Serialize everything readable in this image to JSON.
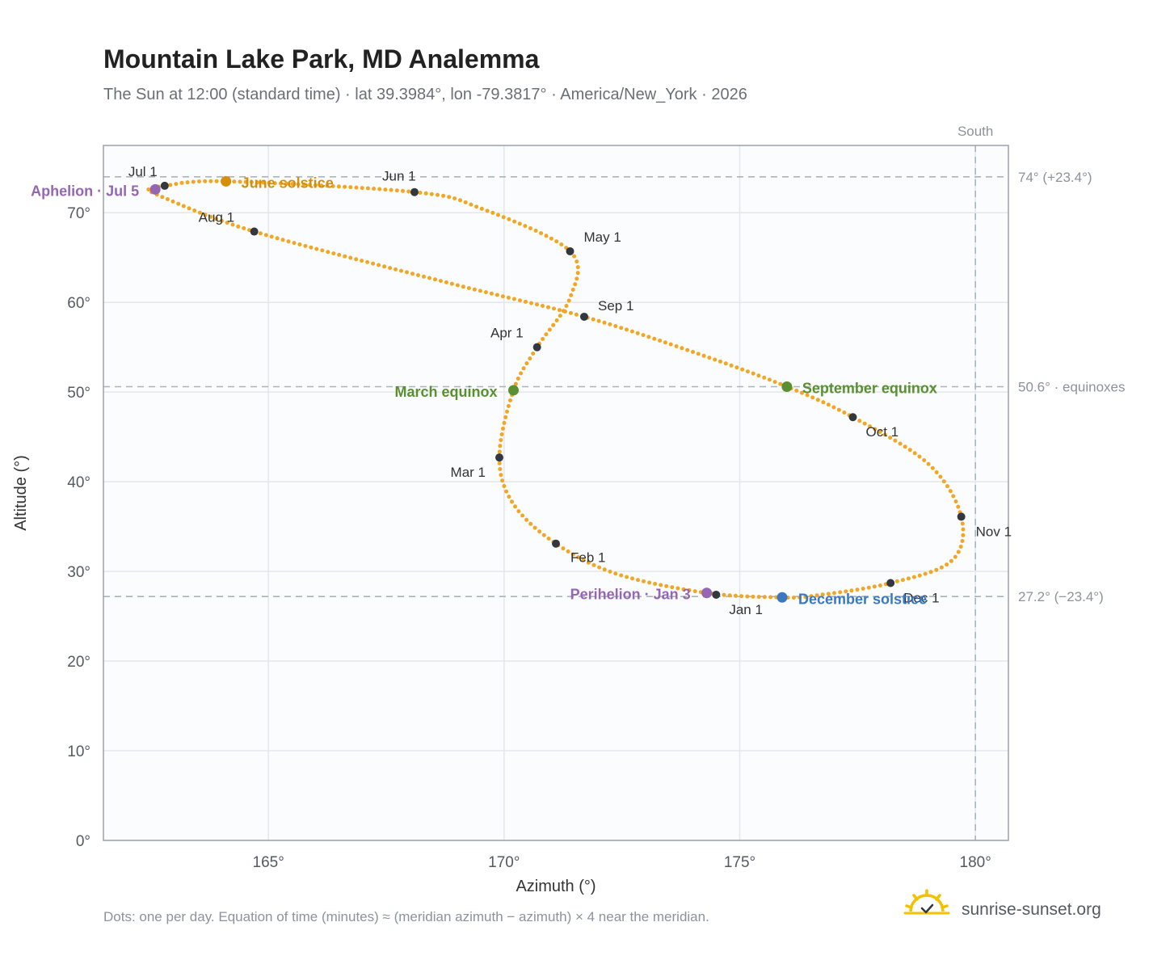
{
  "title": "Mountain Lake Park, MD Analemma",
  "subtitle": "The Sun at 12:00 (standard time) · lat 39.3984°, lon -79.3817° · America/New_York · 2026",
  "footnote": "Dots: one per day. Equation of time (minutes) ≈ (meridian azimuth − azimuth) × 4 near the meridian.",
  "brand": "sunrise-sunset.org",
  "colors": {
    "path": "#f2a623",
    "month_dot": "#333840",
    "solstice_june": "#d4900a",
    "equinox": "#5a9030",
    "solstice_december": "#3a78c0",
    "apsis": "#9466b4",
    "plot_bg": "#fafcfe",
    "grid": "#e3e7eb",
    "frame": "#98a2ae",
    "reference_line": "#aab4bd",
    "logo": "#f2c200"
  },
  "chart_data": {
    "type": "scatter",
    "xlabel": "Azimuth (°)",
    "ylabel": "Altitude (°)",
    "xlim": [
      161.5,
      180.7
    ],
    "ylim": [
      0,
      77.5
    ],
    "x_ticks": [
      {
        "value": 165,
        "label": "165°"
      },
      {
        "value": 170,
        "label": "170°"
      },
      {
        "value": 175,
        "label": "175°"
      },
      {
        "value": 180,
        "label": "180°"
      }
    ],
    "y_ticks": [
      {
        "value": 0,
        "label": "0°"
      },
      {
        "value": 10,
        "label": "10°"
      },
      {
        "value": 20,
        "label": "20°"
      },
      {
        "value": 30,
        "label": "30°"
      },
      {
        "value": 40,
        "label": "40°"
      },
      {
        "value": 50,
        "label": "50°"
      },
      {
        "value": 60,
        "label": "60°"
      },
      {
        "value": 70,
        "label": "70°"
      }
    ],
    "grid": true,
    "reference_lines": [
      {
        "axis": "y",
        "value": 74.0,
        "label": "74° (+23.4°)"
      },
      {
        "axis": "y",
        "value": 50.6,
        "label": "50.6° · equinoxes"
      },
      {
        "axis": "y",
        "value": 27.2,
        "label": "27.2° (−23.4°)"
      },
      {
        "axis": "x",
        "value": 180,
        "label": "South"
      }
    ],
    "month_points": [
      {
        "label": "Jan 1",
        "az": 174.5,
        "alt": 27.4
      },
      {
        "label": "Feb 1",
        "az": 171.1,
        "alt": 33.1
      },
      {
        "label": "Mar 1",
        "az": 169.9,
        "alt": 42.7
      },
      {
        "label": "Apr 1",
        "az": 170.7,
        "alt": 55.0
      },
      {
        "label": "May 1",
        "az": 171.4,
        "alt": 65.7
      },
      {
        "label": "Jun 1",
        "az": 168.1,
        "alt": 72.3
      },
      {
        "label": "Jul 1",
        "az": 162.8,
        "alt": 73.0
      },
      {
        "label": "Aug 1",
        "az": 164.7,
        "alt": 67.9
      },
      {
        "label": "Sep 1",
        "az": 171.7,
        "alt": 58.4
      },
      {
        "label": "Oct 1",
        "az": 177.4,
        "alt": 47.2
      },
      {
        "label": "Nov 1",
        "az": 179.7,
        "alt": 36.1
      },
      {
        "label": "Dec 1",
        "az": 178.2,
        "alt": 28.7
      }
    ],
    "events": [
      {
        "label": "June solstice",
        "az": 164.1,
        "alt": 73.5,
        "color": "#d4900a"
      },
      {
        "label": "March equinox",
        "az": 170.2,
        "alt": 50.2,
        "color": "#5a9030"
      },
      {
        "label": "September equinox",
        "az": 176.0,
        "alt": 50.6,
        "color": "#5a9030"
      },
      {
        "label": "December solstice",
        "az": 175.9,
        "alt": 27.1,
        "color": "#3a78c0"
      },
      {
        "label": "Aphelion · Jul 5",
        "az": 162.6,
        "alt": 72.6,
        "color": "#9466b4"
      },
      {
        "label": "Perihelion · Jan 3",
        "az": 174.3,
        "alt": 27.6,
        "color": "#9466b4"
      }
    ],
    "daily_path": [
      [
        175.9,
        27.1
      ],
      [
        174.3,
        27.6
      ],
      [
        172.4,
        29.7
      ],
      [
        171.1,
        33.1
      ],
      [
        170.2,
        37.5
      ],
      [
        169.9,
        42.7
      ],
      [
        170.2,
        50.2
      ],
      [
        170.7,
        55.0
      ],
      [
        171.4,
        60.5
      ],
      [
        171.4,
        65.7
      ],
      [
        169.5,
        70.5
      ],
      [
        168.1,
        72.3
      ],
      [
        164.1,
        73.5
      ],
      [
        162.8,
        73.0
      ],
      [
        162.6,
        72.6
      ],
      [
        162.6,
        72.1
      ],
      [
        164.7,
        67.9
      ],
      [
        168.8,
        62.2
      ],
      [
        171.7,
        58.4
      ],
      [
        174.1,
        54.3
      ],
      [
        176.0,
        50.6
      ],
      [
        177.4,
        47.2
      ],
      [
        179.0,
        42.0
      ],
      [
        179.7,
        36.1
      ],
      [
        179.5,
        31.2
      ],
      [
        178.2,
        28.7
      ],
      [
        176.6,
        27.3
      ],
      [
        175.9,
        27.1
      ]
    ]
  }
}
